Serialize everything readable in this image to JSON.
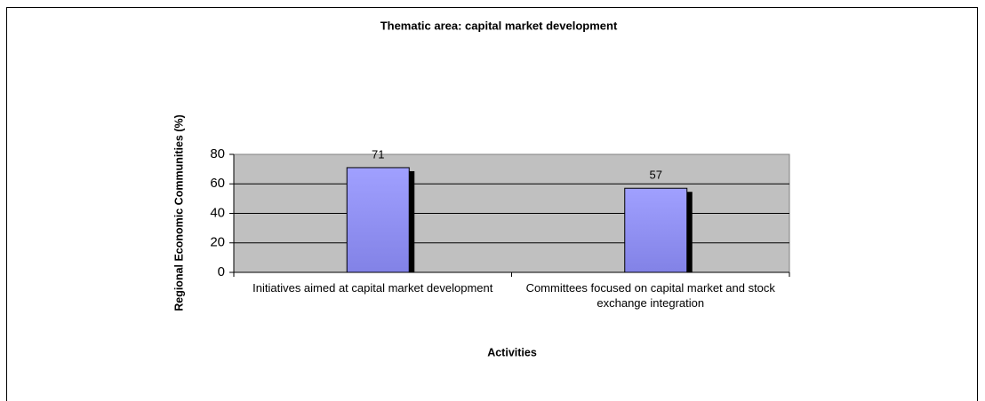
{
  "chart_data": {
    "type": "bar",
    "title": "Thematic area: capital market development",
    "y_label": "Regional Economic Communities (%)",
    "x_label": "Activities",
    "categories": [
      "Initiatives aimed at capital market development",
      "Committees focused on capital market and stock exchange integration"
    ],
    "values": [
      71,
      57
    ],
    "color": "#9999ff",
    "ylim": [
      0,
      80
    ],
    "yticks": [
      0,
      20,
      40,
      60,
      80
    ],
    "grid": true
  }
}
